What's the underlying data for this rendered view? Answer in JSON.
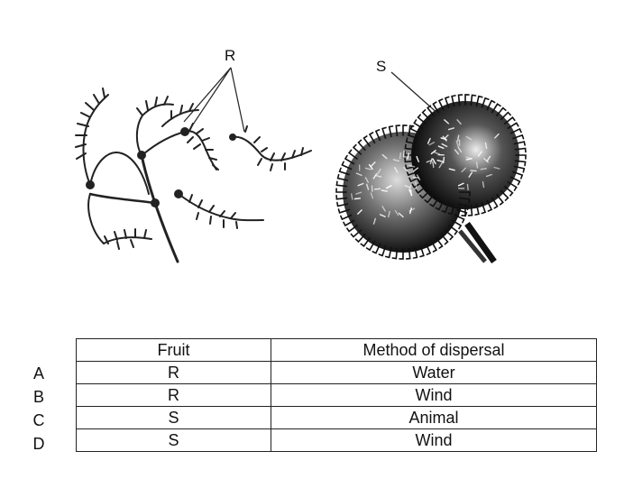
{
  "figure": {
    "label_r": "R",
    "label_s": "S"
  },
  "table": {
    "headers": [
      "Fruit",
      "Method of dispersal"
    ],
    "rows": [
      {
        "option": "A",
        "fruit": "R",
        "method": "Water"
      },
      {
        "option": "B",
        "fruit": "R",
        "method": "Wind"
      },
      {
        "option": "C",
        "fruit": "S",
        "method": "Animal"
      },
      {
        "option": "D",
        "fruit": "S",
        "method": "Wind"
      }
    ]
  }
}
